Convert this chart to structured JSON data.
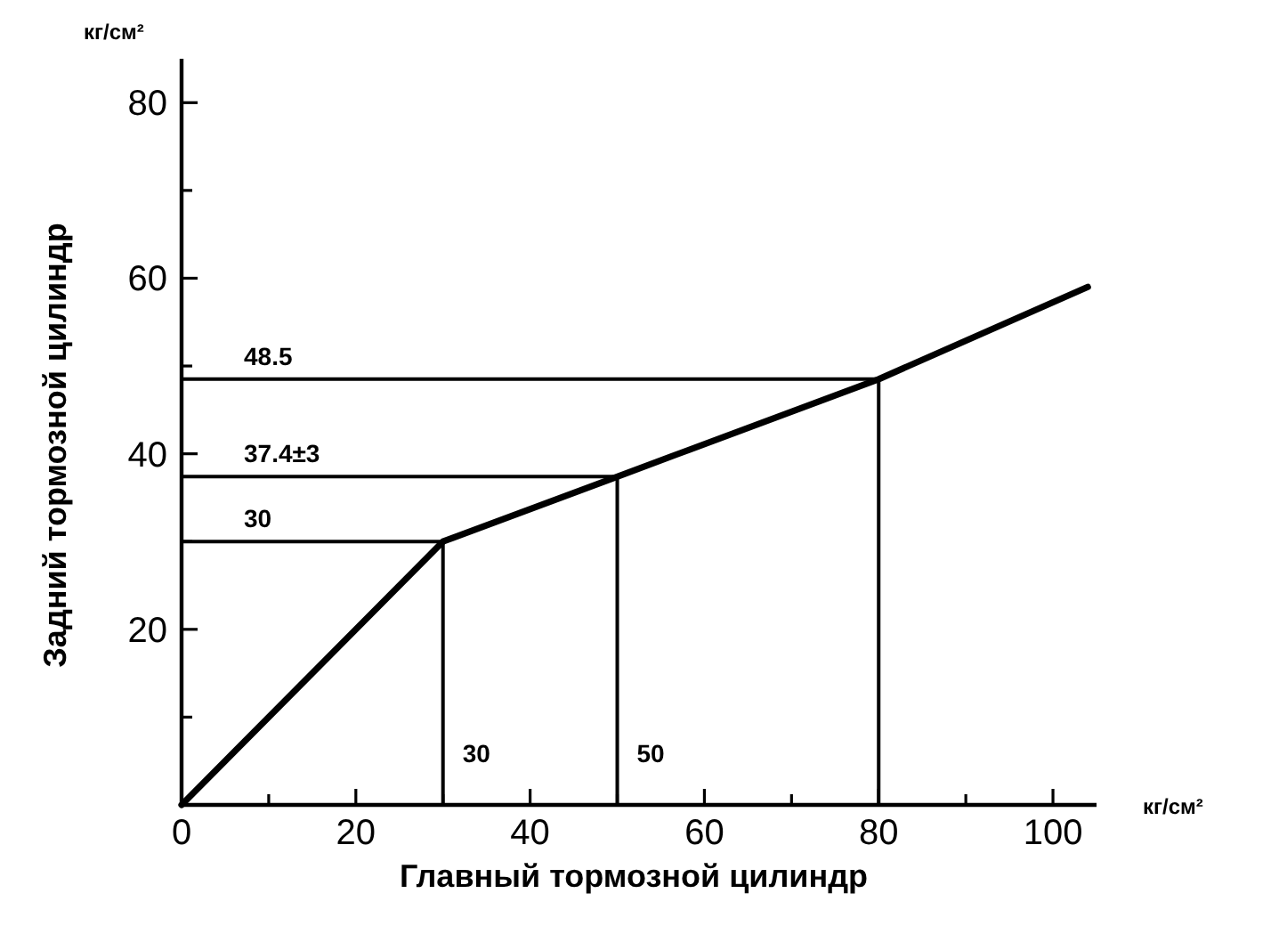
{
  "chart_data": {
    "type": "line",
    "xlabel": "Главный тормозной цилиндр",
    "ylabel": "Задний тормозной цилиндр",
    "x": [
      0,
      30,
      50,
      80,
      104
    ],
    "series": [
      {
        "color": "#000000",
        "values": [
          0,
          30,
          37.4,
          48.5,
          59
        ]
      }
    ],
    "line_style": "solid",
    "xlim": [
      0,
      105
    ],
    "ylim": [
      0,
      85
    ],
    "xticks": [
      0,
      {
        "value": 10,
        "label": null
      },
      20,
      {
        "value": 30,
        "label": null
      },
      40,
      {
        "value": 50,
        "label": null
      },
      60,
      {
        "value": 70,
        "label": null
      },
      80,
      {
        "value": 90,
        "label": null
      },
      100
    ],
    "yticks": [
      {
        "value": 10,
        "label": null
      },
      20,
      {
        "value": 30,
        "label": null
      },
      40,
      {
        "value": 50,
        "label": null
      },
      60,
      {
        "value": 70,
        "label": null
      },
      80
    ],
    "ref_lines": [
      {
        "axis": "y",
        "value": 48.5,
        "label": "48.5"
      },
      {
        "axis": "y",
        "value": 37.4,
        "label": "37.4±3"
      },
      {
        "axis": "y",
        "value": 30,
        "label": "30"
      },
      {
        "axis": "x",
        "value": 30,
        "label": "30"
      },
      {
        "axis": "x",
        "value": 50,
        "label": "50"
      },
      {
        "axis": "x",
        "value": 80
      }
    ],
    "annotations": [
      "кг/см²",
      "кг/см²"
    ]
  }
}
